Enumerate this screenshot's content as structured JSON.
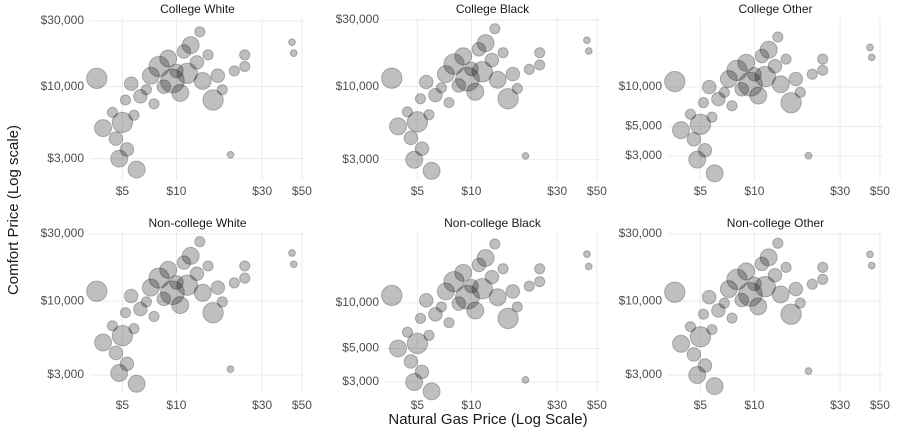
{
  "x_label": "Natural Gas Price (Log Scale)",
  "y_label": "Comfort Price (Log scale)",
  "chart_data": [
    {
      "type": "scatter",
      "title": "College White",
      "xscale": "log",
      "yscale": "log",
      "color": "#000000",
      "opacity": 0.25,
      "grid": true,
      "x": [
        3.6,
        3.9,
        4.4,
        4.6,
        4.8,
        5.0,
        5.2,
        5.3,
        5.6,
        5.8,
        6.0,
        6.3,
        6.8,
        7.2,
        7.5,
        8.0,
        8.5,
        9.0,
        9.5,
        10.0,
        10.5,
        11.0,
        11.5,
        12.0,
        13.0,
        13.5,
        14.0,
        15.0,
        16.0,
        17.0,
        18.0,
        20.0,
        21.0,
        24.0,
        24.0,
        44.0,
        45.0
      ],
      "values": [
        11500,
        5000,
        6500,
        4200,
        3000,
        5500,
        8000,
        3500,
        10500,
        6200,
        2500,
        8500,
        9500,
        12000,
        7500,
        14000,
        10000,
        16000,
        11000,
        13000,
        9000,
        18000,
        12500,
        20000,
        15000,
        25000,
        11000,
        17000,
        8000,
        12000,
        9500,
        3200,
        13000,
        17000,
        14000,
        21000,
        17500
      ],
      "sizes": [
        6,
        5,
        3,
        4,
        5,
        6,
        3,
        4,
        4,
        3,
        5,
        4,
        3,
        5,
        3,
        6,
        4,
        5,
        7,
        4,
        5,
        4,
        6,
        5,
        4,
        3,
        5,
        3,
        6,
        4,
        3,
        2,
        3,
        3,
        3,
        2,
        2
      ],
      "xlim": [
        3.3,
        52
      ],
      "ylim": [
        2100,
        31500
      ],
      "xticks": [
        {
          "value": 5,
          "label": "$5"
        },
        {
          "value": 10,
          "label": "$10"
        },
        {
          "value": 30,
          "label": "$30"
        },
        {
          "value": 50,
          "label": "$50"
        }
      ],
      "yticks": [
        {
          "value": 3000,
          "label": "$3,000"
        },
        {
          "value": 10000,
          "label": "$10,000"
        },
        {
          "value": 30000,
          "label": "$30,000"
        }
      ]
    },
    {
      "type": "scatter",
      "title": "College Black",
      "xscale": "log",
      "yscale": "log",
      "color": "#000000",
      "opacity": 0.25,
      "grid": true,
      "x": [
        3.6,
        3.9,
        4.4,
        4.6,
        4.8,
        5.0,
        5.2,
        5.3,
        5.6,
        5.8,
        6.0,
        6.3,
        6.8,
        7.2,
        7.5,
        8.0,
        8.5,
        9.0,
        9.5,
        10.0,
        10.5,
        11.0,
        11.5,
        12.0,
        13.0,
        13.5,
        14.0,
        15.0,
        16.0,
        17.0,
        18.0,
        20.0,
        21.0,
        24.0,
        24.0,
        44.0,
        45.0
      ],
      "values": [
        11500,
        5200,
        6600,
        4300,
        3000,
        5600,
        8200,
        3600,
        10800,
        6300,
        2500,
        8700,
        9800,
        12300,
        7700,
        14500,
        10200,
        16500,
        11300,
        13400,
        9200,
        18500,
        12800,
        20500,
        15500,
        26000,
        11200,
        17500,
        8200,
        12300,
        9700,
        3200,
        13300,
        17500,
        14300,
        21500,
        18000
      ],
      "sizes": [
        6,
        5,
        3,
        4,
        5,
        6,
        3,
        4,
        4,
        3,
        5,
        4,
        3,
        5,
        3,
        6,
        4,
        5,
        7,
        4,
        5,
        4,
        6,
        5,
        4,
        3,
        5,
        3,
        6,
        4,
        3,
        2,
        3,
        3,
        3,
        2,
        2
      ],
      "xlim": [
        3.3,
        52
      ],
      "ylim": [
        2150,
        31000
      ],
      "xticks": [
        {
          "value": 5,
          "label": "$5"
        },
        {
          "value": 10,
          "label": "$10"
        },
        {
          "value": 30,
          "label": "$30"
        },
        {
          "value": 50,
          "label": "$50"
        }
      ],
      "yticks": [
        {
          "value": 3000,
          "label": "$3,000"
        },
        {
          "value": 10000,
          "label": "$10,000"
        },
        {
          "value": 30000,
          "label": "$30,000"
        }
      ]
    },
    {
      "type": "scatter",
      "title": "College Other",
      "xscale": "log",
      "yscale": "log",
      "color": "#000000",
      "opacity": 0.25,
      "grid": true,
      "x": [
        3.6,
        3.9,
        4.4,
        4.6,
        4.8,
        5.0,
        5.2,
        5.3,
        5.6,
        5.8,
        6.0,
        6.3,
        6.8,
        7.2,
        7.5,
        8.0,
        8.5,
        9.0,
        9.5,
        10.0,
        10.5,
        11.0,
        11.5,
        12.0,
        13.0,
        13.5,
        14.0,
        15.0,
        16.0,
        17.0,
        18.0,
        20.0,
        21.0,
        24.0,
        24.0,
        44.0,
        45.0
      ],
      "values": [
        11000,
        4700,
        6200,
        4000,
        2800,
        5200,
        7600,
        3300,
        10000,
        5900,
        2200,
        8100,
        9100,
        11500,
        7200,
        13400,
        9600,
        15300,
        10500,
        12500,
        8600,
        17200,
        12000,
        19200,
        14400,
        24000,
        10500,
        16300,
        7600,
        11500,
        9100,
        3000,
        12500,
        16300,
        13400,
        20000,
        16800
      ],
      "sizes": [
        6,
        5,
        3,
        4,
        5,
        6,
        3,
        4,
        4,
        3,
        5,
        4,
        3,
        5,
        3,
        6,
        4,
        5,
        7,
        4,
        5,
        4,
        6,
        5,
        4,
        3,
        5,
        3,
        6,
        4,
        3,
        2,
        3,
        3,
        3,
        2,
        2
      ],
      "xlim": [
        3.3,
        52
      ],
      "ylim": [
        1960,
        33500
      ],
      "xticks": [
        {
          "value": 5,
          "label": "$5"
        },
        {
          "value": 10,
          "label": "$10"
        },
        {
          "value": 30,
          "label": "$30"
        },
        {
          "value": 50,
          "label": "$50"
        }
      ],
      "yticks": [
        {
          "value": 3000,
          "label": "$3,000"
        },
        {
          "value": 5000,
          "label": "$5,000"
        },
        {
          "value": 10000,
          "label": "$10,000"
        }
      ]
    },
    {
      "type": "scatter",
      "title": "Non-college White",
      "xscale": "log",
      "yscale": "log",
      "color": "#000000",
      "opacity": 0.25,
      "grid": true,
      "x": [
        3.6,
        3.9,
        4.4,
        4.6,
        4.8,
        5.0,
        5.2,
        5.3,
        5.6,
        5.8,
        6.0,
        6.3,
        6.8,
        7.2,
        7.5,
        8.0,
        8.5,
        9.0,
        9.5,
        10.0,
        10.5,
        11.0,
        11.5,
        12.0,
        13.0,
        13.5,
        14.0,
        15.0,
        16.0,
        17.0,
        18.0,
        20.0,
        21.0,
        24.0,
        24.0,
        44.0,
        45.0
      ],
      "values": [
        11800,
        5100,
        6700,
        4300,
        3100,
        5700,
        8300,
        3600,
        10900,
        6400,
        2600,
        8800,
        9900,
        12500,
        7800,
        14600,
        10400,
        16700,
        11500,
        13600,
        9400,
        18800,
        13000,
        21000,
        15700,
        26500,
        11500,
        17800,
        8300,
        12500,
        9900,
        3300,
        13500,
        17800,
        14600,
        22000,
        18300
      ],
      "sizes": [
        6,
        5,
        3,
        4,
        5,
        6,
        3,
        4,
        4,
        3,
        5,
        4,
        3,
        5,
        3,
        6,
        4,
        5,
        7,
        4,
        5,
        4,
        6,
        5,
        4,
        3,
        5,
        3,
        6,
        4,
        3,
        2,
        3,
        3,
        3,
        2,
        2
      ],
      "xlim": [
        3.3,
        52
      ],
      "ylim": [
        2200,
        31000
      ],
      "xticks": [
        {
          "value": 5,
          "label": "$5"
        },
        {
          "value": 10,
          "label": "$10"
        },
        {
          "value": 30,
          "label": "$30"
        },
        {
          "value": 50,
          "label": "$50"
        }
      ],
      "yticks": [
        {
          "value": 3000,
          "label": "$3,000"
        },
        {
          "value": 10000,
          "label": "$10,000"
        },
        {
          "value": 30000,
          "label": "$30,000"
        }
      ]
    },
    {
      "type": "scatter",
      "title": "Non-college Black",
      "xscale": "log",
      "yscale": "log",
      "color": "#000000",
      "opacity": 0.25,
      "grid": true,
      "x": [
        3.6,
        3.9,
        4.4,
        4.6,
        4.8,
        5.0,
        5.2,
        5.3,
        5.6,
        5.8,
        6.0,
        6.3,
        6.8,
        7.2,
        7.5,
        8.0,
        8.5,
        9.0,
        9.5,
        10.0,
        10.5,
        11.0,
        11.5,
        12.0,
        13.0,
        13.5,
        14.0,
        15.0,
        16.0,
        17.0,
        18.0,
        20.0,
        21.0,
        24.0,
        24.0,
        44.0,
        45.0
      ],
      "values": [
        11200,
        5000,
        6400,
        4100,
        3000,
        5400,
        7900,
        3500,
        10400,
        6100,
        2600,
        8400,
        9400,
        11900,
        7400,
        13800,
        9900,
        15800,
        10900,
        12900,
        8900,
        17800,
        12400,
        19800,
        14800,
        24500,
        10900,
        16800,
        7900,
        11900,
        9400,
        3100,
        12900,
        16800,
        13800,
        21000,
        17400
      ],
      "sizes": [
        6,
        5,
        3,
        4,
        5,
        6,
        3,
        4,
        4,
        3,
        5,
        4,
        3,
        5,
        3,
        6,
        4,
        5,
        7,
        4,
        5,
        4,
        6,
        5,
        4,
        3,
        5,
        3,
        6,
        4,
        3,
        2,
        3,
        3,
        3,
        2,
        2
      ],
      "xlim": [
        3.3,
        52
      ],
      "ylim": [
        2500,
        29400
      ],
      "xticks": [
        {
          "value": 5,
          "label": "$5"
        },
        {
          "value": 10,
          "label": "$10"
        },
        {
          "value": 30,
          "label": "$30"
        },
        {
          "value": 50,
          "label": "$50"
        }
      ],
      "yticks": [
        {
          "value": 3000,
          "label": "$3,000"
        },
        {
          "value": 5000,
          "label": "$5,000"
        },
        {
          "value": 10000,
          "label": "$10,000"
        }
      ]
    },
    {
      "type": "scatter",
      "title": "Non-college Other",
      "xscale": "log",
      "yscale": "log",
      "color": "#000000",
      "opacity": 0.25,
      "grid": true,
      "x": [
        3.6,
        3.9,
        4.4,
        4.6,
        4.8,
        5.0,
        5.2,
        5.3,
        5.6,
        5.8,
        6.0,
        6.3,
        6.8,
        7.2,
        7.5,
        8.0,
        8.5,
        9.0,
        9.5,
        10.0,
        10.5,
        11.0,
        11.5,
        12.0,
        13.0,
        13.5,
        14.0,
        15.0,
        16.0,
        17.0,
        18.0,
        20.0,
        21.0,
        24.0,
        24.0,
        44.0,
        45.0
      ],
      "values": [
        11600,
        5000,
        6600,
        4200,
        3000,
        5600,
        8100,
        3500,
        10700,
        6300,
        2500,
        8600,
        9700,
        12200,
        7600,
        14300,
        10200,
        16300,
        11200,
        13300,
        9200,
        18400,
        12700,
        20500,
        15300,
        25800,
        11200,
        17400,
        8100,
        12200,
        9700,
        3200,
        13200,
        17400,
        14300,
        21500,
        17900
      ],
      "sizes": [
        6,
        5,
        3,
        4,
        5,
        6,
        3,
        4,
        4,
        3,
        5,
        4,
        3,
        5,
        3,
        6,
        4,
        5,
        7,
        4,
        5,
        4,
        6,
        5,
        4,
        3,
        5,
        3,
        6,
        4,
        3,
        2,
        3,
        3,
        3,
        2,
        2
      ],
      "xlim": [
        3.3,
        52
      ],
      "ylim": [
        2200,
        31000
      ],
      "xticks": [
        {
          "value": 5,
          "label": "$5"
        },
        {
          "value": 10,
          "label": "$10"
        },
        {
          "value": 30,
          "label": "$30"
        },
        {
          "value": 50,
          "label": "$50"
        }
      ],
      "yticks": [
        {
          "value": 3000,
          "label": "$3,000"
        },
        {
          "value": 10000,
          "label": "$10,000"
        },
        {
          "value": 30000,
          "label": "$30,000"
        }
      ]
    }
  ]
}
